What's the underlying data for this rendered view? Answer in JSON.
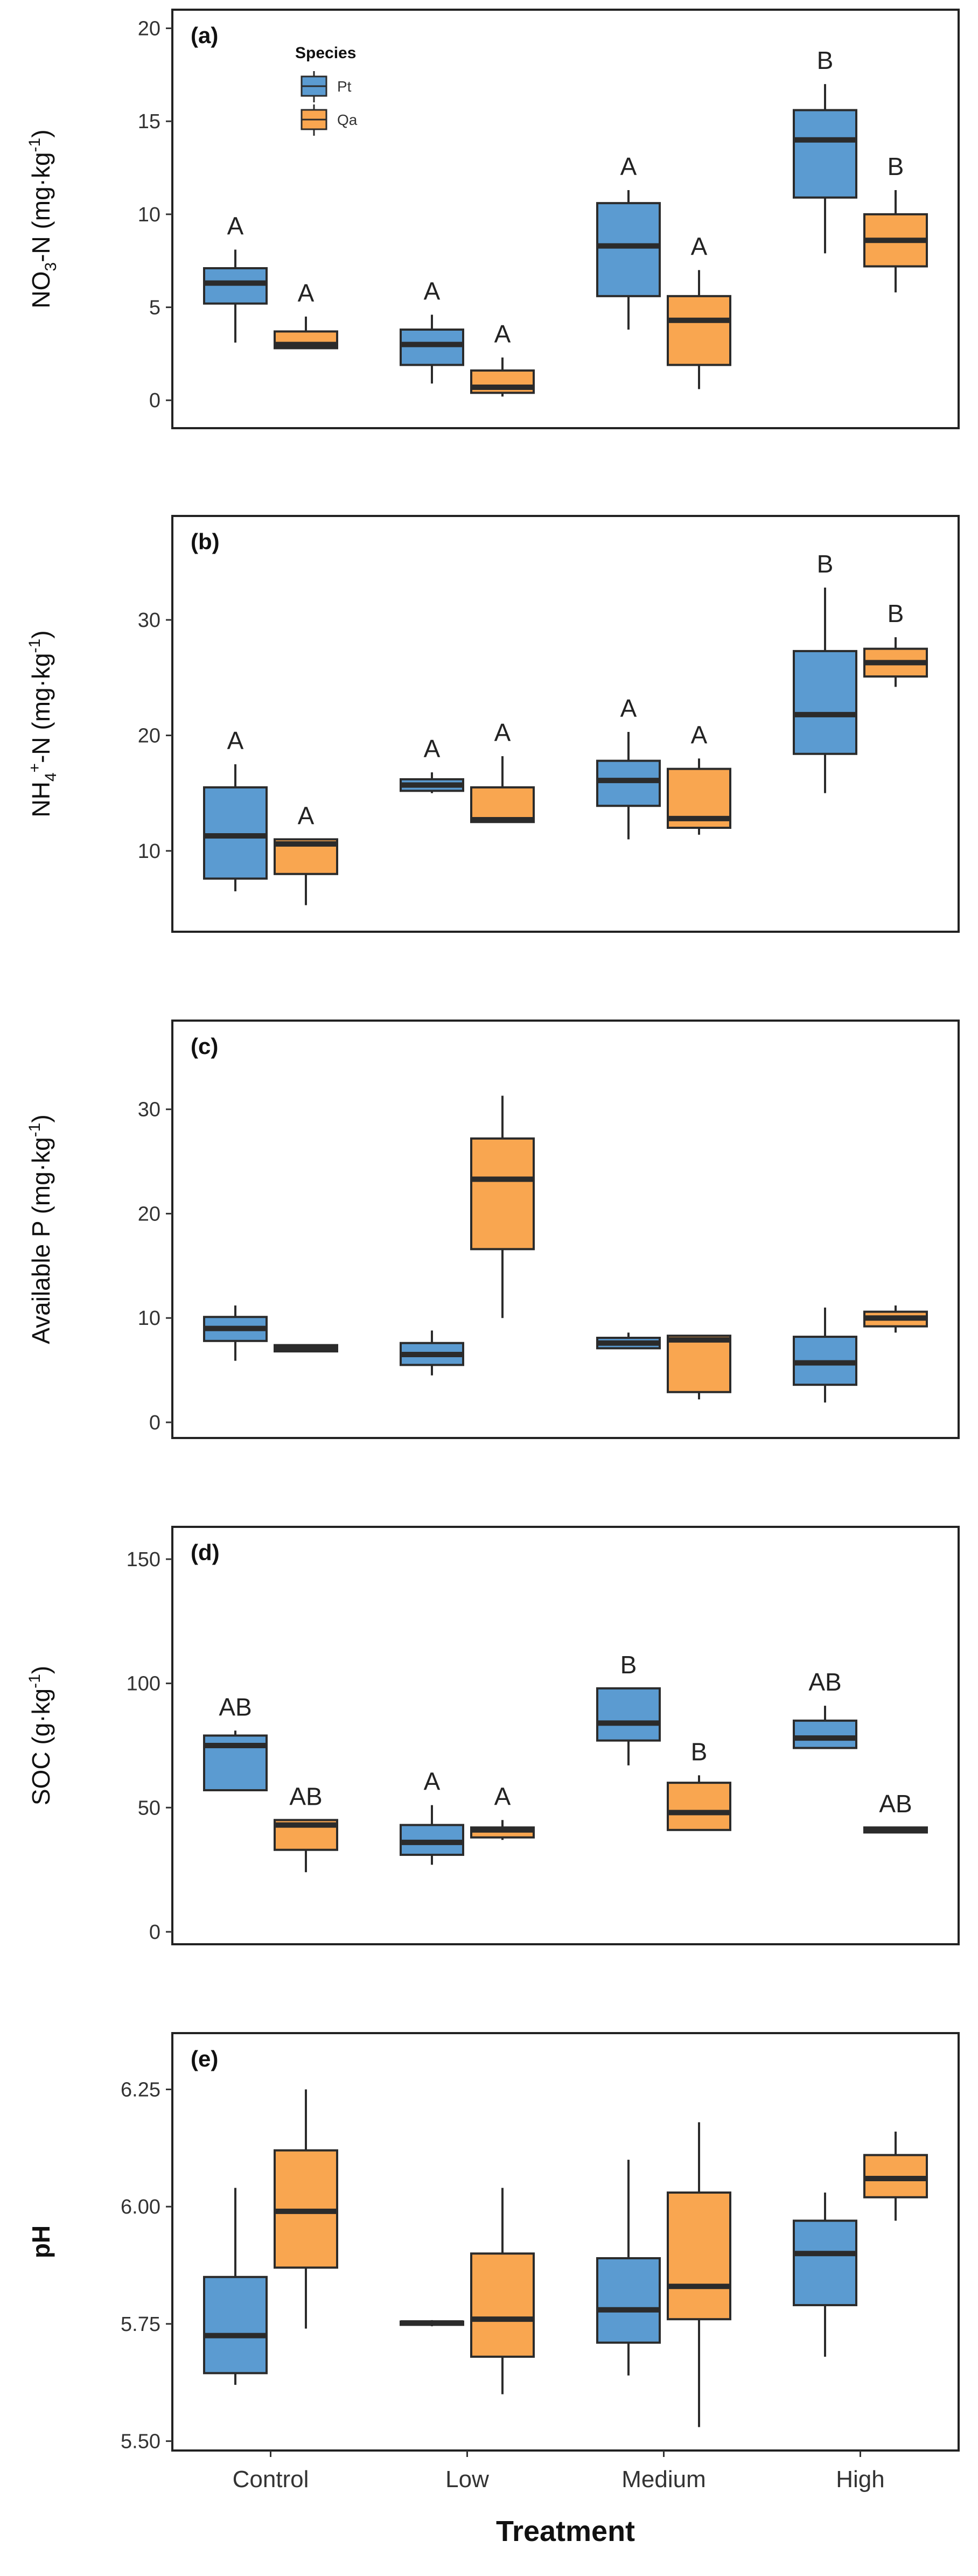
{
  "colors": {
    "pt": "#5b9bd1",
    "qa": "#f9a650",
    "line": "#2b2b2b"
  },
  "legend": {
    "title": "Species",
    "items": [
      "Pt",
      "Qa"
    ]
  },
  "x_title": "Treatment",
  "chart_data": [
    {
      "type": "box",
      "panel_label": "(a)",
      "ylabel": "NO3-N (mg·kg-1)",
      "ylabel_parts": {
        "a": "NO",
        "b": "3",
        "c": "-N (mg·kg",
        "d": "-1",
        "e": ")"
      },
      "ylim": [
        -1.5,
        21
      ],
      "ticks": [
        0,
        5,
        10,
        15,
        20
      ],
      "tick_labels": [
        "0",
        "5",
        "10",
        "15",
        "20"
      ],
      "categories": [
        "Control",
        "Low",
        "Medium",
        "High"
      ],
      "series": [
        {
          "name": "Pt",
          "boxes": [
            {
              "min": 3.1,
              "q1": 5.2,
              "median": 6.3,
              "q3": 7.1,
              "max": 8.1,
              "label": "A"
            },
            {
              "min": 0.9,
              "q1": 1.9,
              "median": 3.0,
              "q3": 3.8,
              "max": 4.6,
              "label": "A"
            },
            {
              "min": 3.8,
              "q1": 5.6,
              "median": 8.3,
              "q3": 10.6,
              "max": 11.3,
              "label": "A"
            },
            {
              "min": 7.9,
              "q1": 10.9,
              "median": 14.0,
              "q3": 15.6,
              "max": 17.0,
              "label": "B"
            }
          ]
        },
        {
          "name": "Qa",
          "boxes": [
            {
              "min": 2.8,
              "q1": 2.8,
              "median": 3.0,
              "q3": 3.7,
              "max": 4.5,
              "label": "A"
            },
            {
              "min": 0.2,
              "q1": 0.4,
              "median": 0.7,
              "q3": 1.6,
              "max": 2.3,
              "label": "A"
            },
            {
              "min": 0.6,
              "q1": 1.9,
              "median": 4.3,
              "q3": 5.6,
              "max": 7.0,
              "label": "A"
            },
            {
              "min": 5.8,
              "q1": 7.2,
              "median": 8.6,
              "q3": 10.0,
              "max": 11.3,
              "label": "B"
            }
          ]
        }
      ]
    },
    {
      "type": "box",
      "panel_label": "(b)",
      "ylabel": "NH4+-N (mg·kg-1)",
      "ylabel_parts": {
        "a": "NH",
        "b": "4",
        "b2": "+",
        "c": "-N (mg·kg",
        "d": "-1",
        "e": ")"
      },
      "ylim": [
        3,
        39
      ],
      "ticks": [
        10,
        20,
        30
      ],
      "tick_labels": [
        "10",
        "20",
        "30"
      ],
      "categories": [
        "Control",
        "Low",
        "Medium",
        "High"
      ],
      "series": [
        {
          "name": "Pt",
          "boxes": [
            {
              "min": 6.5,
              "q1": 7.6,
              "median": 11.3,
              "q3": 15.5,
              "max": 17.5,
              "label": "A"
            },
            {
              "min": 15.0,
              "q1": 15.2,
              "median": 15.7,
              "q3": 16.2,
              "max": 16.8,
              "label": "A"
            },
            {
              "min": 11.0,
              "q1": 13.9,
              "median": 16.1,
              "q3": 17.8,
              "max": 20.3,
              "label": "A"
            },
            {
              "min": 15.0,
              "q1": 18.4,
              "median": 21.8,
              "q3": 27.3,
              "max": 32.8,
              "label": "B"
            }
          ]
        },
        {
          "name": "Qa",
          "boxes": [
            {
              "min": 5.3,
              "q1": 8.0,
              "median": 10.6,
              "q3": 11.0,
              "max": 11.0,
              "label": "A"
            },
            {
              "min": 12.5,
              "q1": 12.5,
              "median": 12.7,
              "q3": 15.5,
              "max": 18.2,
              "label": "A"
            },
            {
              "min": 11.4,
              "q1": 12.0,
              "median": 12.8,
              "q3": 17.1,
              "max": 18.0,
              "label": "A"
            },
            {
              "min": 24.2,
              "q1": 25.1,
              "median": 26.3,
              "q3": 27.5,
              "max": 28.5,
              "label": "B"
            }
          ]
        }
      ]
    },
    {
      "type": "box",
      "panel_label": "(c)",
      "ylabel": "Available P (mg·kg-1)",
      "ylabel_parts": {
        "a": "Available P (mg·kg",
        "d": "-1",
        "e": ")"
      },
      "ylim": [
        -1.5,
        38.5
      ],
      "ticks": [
        0,
        10,
        20,
        30
      ],
      "tick_labels": [
        "0",
        "10",
        "20",
        "30"
      ],
      "categories": [
        "Control",
        "Low",
        "Medium",
        "High"
      ],
      "series": [
        {
          "name": "Pt",
          "boxes": [
            {
              "min": 5.9,
              "q1": 7.8,
              "median": 9.0,
              "q3": 10.1,
              "max": 11.2
            },
            {
              "min": 4.5,
              "q1": 5.5,
              "median": 6.5,
              "q3": 7.6,
              "max": 8.8
            },
            {
              "min": 7.1,
              "q1": 7.1,
              "median": 7.6,
              "q3": 8.1,
              "max": 8.6
            },
            {
              "min": 1.9,
              "q1": 3.6,
              "median": 5.7,
              "q3": 8.2,
              "max": 11.0
            }
          ]
        },
        {
          "name": "Qa",
          "boxes": [
            {
              "min": 6.8,
              "q1": 6.8,
              "median": 7.1,
              "q3": 7.4,
              "max": 7.4
            },
            {
              "min": 10.0,
              "q1": 16.6,
              "median": 23.3,
              "q3": 27.2,
              "max": 31.3
            },
            {
              "min": 2.2,
              "q1": 2.9,
              "median": 7.9,
              "q3": 8.3,
              "max": 8.3
            },
            {
              "min": 8.6,
              "q1": 9.2,
              "median": 10.0,
              "q3": 10.6,
              "max": 11.2
            }
          ]
        }
      ]
    },
    {
      "type": "box",
      "panel_label": "(d)",
      "ylabel": "SOC (g·kg-1)",
      "ylabel_parts": {
        "a": "SOC (g·kg",
        "d": "-1",
        "e": ")"
      },
      "ylim": [
        -5,
        163
      ],
      "ticks": [
        0,
        50,
        100,
        150
      ],
      "tick_labels": [
        "0",
        "50",
        "100",
        "150"
      ],
      "categories": [
        "Control",
        "Low",
        "Medium",
        "High"
      ],
      "series": [
        {
          "name": "Pt",
          "boxes": [
            {
              "min": 57,
              "q1": 57,
              "median": 75,
              "q3": 79,
              "max": 81,
              "label": "AB"
            },
            {
              "min": 27,
              "q1": 31,
              "median": 36,
              "q3": 43,
              "max": 51,
              "label": "A"
            },
            {
              "min": 67,
              "q1": 77,
              "median": 84,
              "q3": 98,
              "max": 98,
              "label": "B"
            },
            {
              "min": 74,
              "q1": 74,
              "median": 78,
              "q3": 85,
              "max": 91,
              "label": "AB"
            }
          ]
        },
        {
          "name": "Qa",
          "boxes": [
            {
              "min": 24,
              "q1": 33,
              "median": 43,
              "q3": 45,
              "max": 45,
              "label": "AB"
            },
            {
              "min": 37,
              "q1": 38,
              "median": 41,
              "q3": 42,
              "max": 45,
              "label": "A"
            },
            {
              "min": 41,
              "q1": 41,
              "median": 48,
              "q3": 60,
              "max": 63,
              "label": "B"
            },
            {
              "min": 40,
              "q1": 40,
              "median": 41,
              "q3": 42,
              "max": 42,
              "label": "AB"
            }
          ]
        }
      ]
    },
    {
      "type": "box",
      "panel_label": "(e)",
      "ylabel": "pH",
      "ylabel_bold": true,
      "ylabel_parts": {
        "a": "pH"
      },
      "ylim": [
        5.48,
        6.37
      ],
      "ticks": [
        5.5,
        5.75,
        6.0,
        6.25
      ],
      "tick_labels": [
        "5.50",
        "5.75",
        "6.00",
        "6.25"
      ],
      "categories": [
        "Control",
        "Low",
        "Medium",
        "High"
      ],
      "series": [
        {
          "name": "Pt",
          "boxes": [
            {
              "min": 5.62,
              "q1": 5.645,
              "median": 5.725,
              "q3": 5.85,
              "max": 6.04
            },
            {
              "min": 5.745,
              "q1": 5.748,
              "median": 5.752,
              "q3": 5.755,
              "max": 5.758
            },
            {
              "min": 5.64,
              "q1": 5.71,
              "median": 5.78,
              "q3": 5.89,
              "max": 6.1
            },
            {
              "min": 5.68,
              "q1": 5.79,
              "median": 5.9,
              "q3": 5.97,
              "max": 6.03
            }
          ]
        },
        {
          "name": "Qa",
          "boxes": [
            {
              "min": 5.74,
              "q1": 5.87,
              "median": 5.99,
              "q3": 6.12,
              "max": 6.25
            },
            {
              "min": 5.6,
              "q1": 5.68,
              "median": 5.76,
              "q3": 5.9,
              "max": 6.04
            },
            {
              "min": 5.53,
              "q1": 5.76,
              "median": 5.83,
              "q3": 6.03,
              "max": 6.18
            },
            {
              "min": 5.97,
              "q1": 6.02,
              "median": 6.06,
              "q3": 6.11,
              "max": 6.16
            }
          ]
        }
      ]
    }
  ]
}
